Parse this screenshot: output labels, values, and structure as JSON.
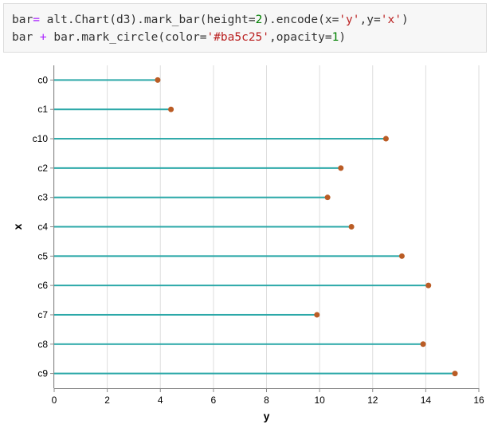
{
  "code": {
    "line1": [
      {
        "t": "bar",
        "c": ""
      },
      {
        "t": "=",
        "c": "op"
      },
      {
        "t": " alt.Chart(d3).mark_bar(height=",
        "c": ""
      },
      {
        "t": "2",
        "c": "num"
      },
      {
        "t": ").encode(x=",
        "c": ""
      },
      {
        "t": "'y'",
        "c": "str"
      },
      {
        "t": ",y=",
        "c": ""
      },
      {
        "t": "'x'",
        "c": "str"
      },
      {
        "t": ")",
        "c": ""
      }
    ],
    "line2": [
      {
        "t": "bar ",
        "c": ""
      },
      {
        "t": "+",
        "c": "op"
      },
      {
        "t": " bar.mark_circle(color=",
        "c": ""
      },
      {
        "t": "'#ba5c25'",
        "c": "str"
      },
      {
        "t": ",opacity=",
        "c": ""
      },
      {
        "t": "1",
        "c": "num"
      },
      {
        "t": ")",
        "c": ""
      }
    ]
  },
  "chart_data": {
    "type": "bar",
    "orientation": "horizontal",
    "categories": [
      "c0",
      "c1",
      "c10",
      "c2",
      "c3",
      "c4",
      "c5",
      "c6",
      "c7",
      "c8",
      "c9"
    ],
    "values": [
      3.9,
      4.4,
      12.5,
      10.8,
      10.3,
      11.2,
      13.1,
      14.1,
      9.9,
      13.9,
      15.1
    ],
    "xlabel": "y",
    "ylabel": "x",
    "xlim": [
      0,
      16
    ],
    "xticks": [
      0,
      2,
      4,
      6,
      8,
      10,
      12,
      14,
      16
    ],
    "grid": true,
    "bar_color": "#2ba8a8",
    "point_color": "#ba5c25"
  }
}
